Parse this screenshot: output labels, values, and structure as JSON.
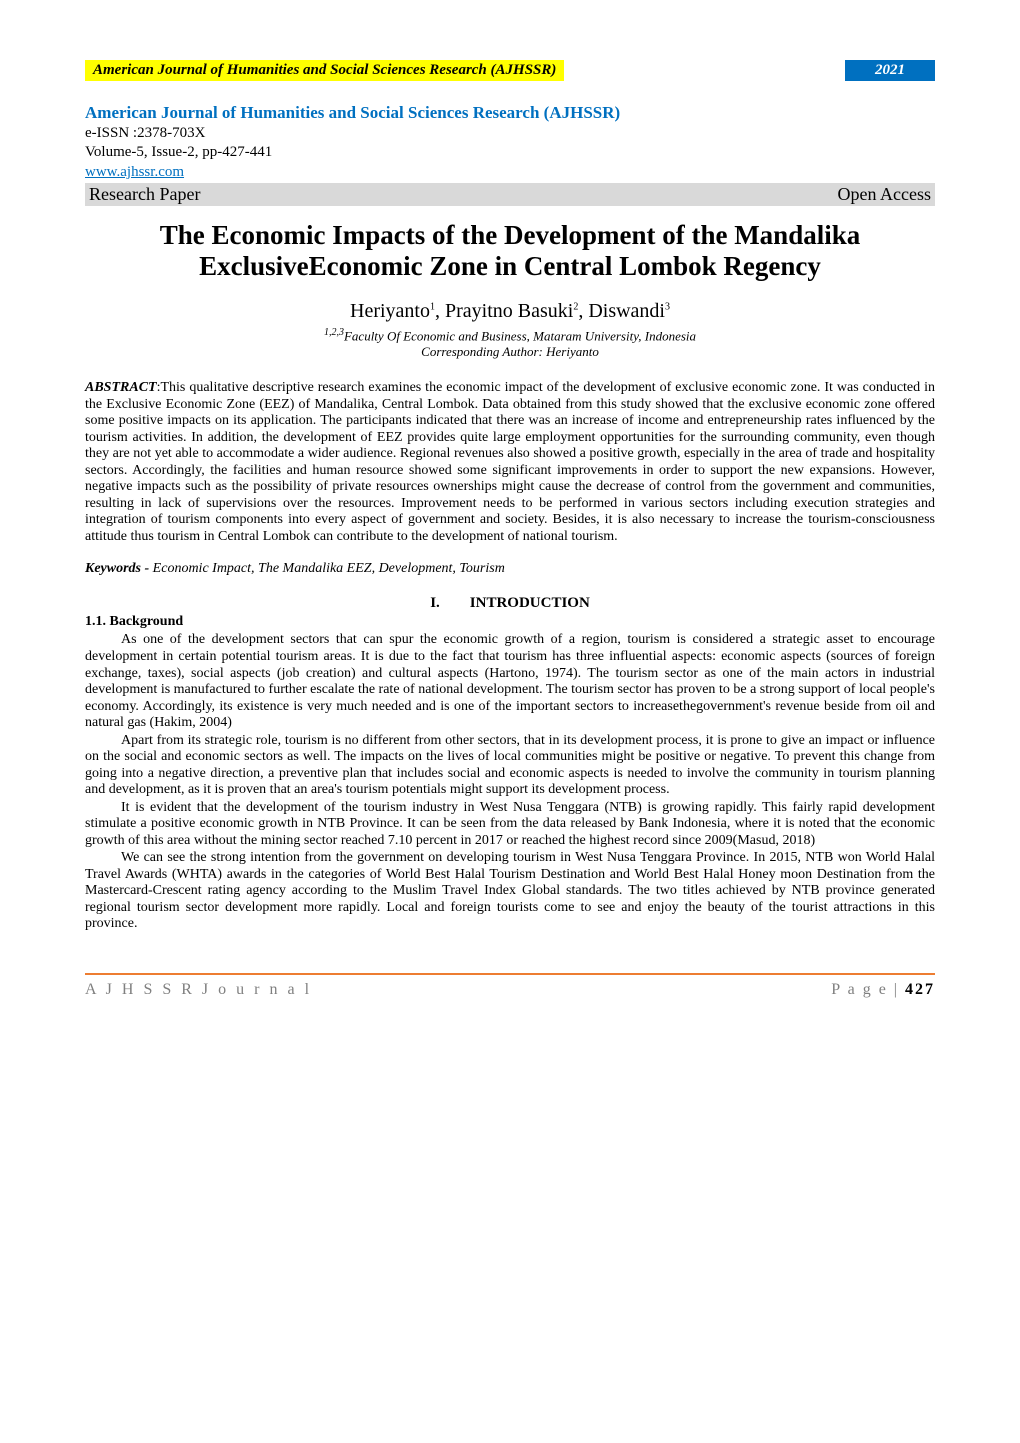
{
  "header": {
    "bar_title": "American Journal of Humanities and Social Sciences Research (AJHSSR)",
    "bar_year": "2021",
    "bar_title_bg": "#ffff00",
    "bar_year_bg": "#0070c0",
    "bar_year_color": "#ffffff"
  },
  "journal": {
    "name": "American Journal of Humanities and Social Sciences Research (AJHSSR)",
    "name_color": "#0070c0",
    "issn": "e-ISSN :2378-703X",
    "volume": "Volume-5, Issue-2, pp-427-441",
    "link": "www.ajhssr.com",
    "link_color": "#0070c0",
    "paper_type": "Research Paper",
    "access_type": "Open Access",
    "type_row_bg": "#d9d9d9"
  },
  "title": "The Economic Impacts of the Development of the Mandalika ExclusiveEconomic Zone in Central Lombok Regency",
  "authors": {
    "a1": "Heriyanto",
    "s1": "1",
    "a2": "Prayitno Basuki",
    "s2": "2",
    "a3": "Diswandi",
    "s3": "3"
  },
  "affiliation": {
    "sup": "1,2,3",
    "text": "Faculty Of Economic and Business, Mataram University, Indonesia"
  },
  "corresponding": "Corresponding Author: Heriyanto",
  "abstract": {
    "label": "ABSTRACT",
    "text": ":This qualitative descriptive research examines the economic impact of the development of exclusive economic zone. It was conducted in the Exclusive Economic Zone (EEZ) of Mandalika, Central Lombok. Data obtained from this study showed that the exclusive economic zone offered some positive impacts on its application. The participants indicated that there was an increase of income and entrepreneurship rates influenced by the tourism activities. In addition, the development of EEZ provides quite large employment opportunities for the surrounding community, even though they are not yet able to accommodate a wider audience. Regional revenues also showed a positive growth, especially in the area of trade and hospitality sectors. Accordingly, the facilities and human resource showed some significant improvements in order to support the new expansions. However, negative impacts such as the possibility of private resources ownerships might cause the decrease of control from the government and communities, resulting in lack of supervisions over the resources. Improvement needs to be performed in various sectors including execution strategies and integration of tourism components into every aspect of government and society. Besides, it is also necessary to increase the tourism-consciousness attitude thus tourism in Central Lombok can contribute to the development of national tourism."
  },
  "keywords": {
    "label": "Keywords - ",
    "text": "Economic Impact, The Mandalika EEZ, Development, Tourism"
  },
  "section1": {
    "number": "I.",
    "title": "INTRODUCTION"
  },
  "subsection1": "1.1.  Background",
  "paragraphs": {
    "p1": "As one of the development sectors that can spur the economic growth of a region, tourism is considered a strategic asset to encourage development in certain potential tourism areas. It is due to the fact that tourism has three influential aspects: economic aspects (sources of foreign exchange, taxes), social aspects (job creation) and cultural aspects (Hartono, 1974). The tourism sector as one of the main actors in industrial development is manufactured to further escalate the rate of national development. The tourism sector has proven to be a strong support of local people's economy. Accordingly, its existence is very much needed and is one of the important sectors to increasethegovernment's revenue beside from oil and natural gas (Hakim, 2004)",
    "p2": "Apart from its strategic role, tourism is no different from other sectors, that in its development process, it is prone to give an impact or influence on the social and economic sectors as well. The impacts on the lives of local communities might be positive or negative. To prevent this change from going into a negative direction, a preventive plan that includes social and economic aspects is needed to involve the community in tourism planning and development, as it is proven that an area's tourism potentials might support its development process.",
    "p3": "It is evident that the development of the tourism industry in West Nusa Tenggara (NTB) is growing rapidly. This fairly rapid development stimulate a positive economic growth in NTB Province. It can be seen from the data released by Bank Indonesia, where it is noted that the economic growth of this area without the mining sector reached 7.10 percent in 2017 or reached the highest record since 2009(Masud, 2018)",
    "p4": "We can see the strong intention from the government on developing tourism in West Nusa Tenggara Province. In 2015, NTB won World Halal Travel Awards (WHTA) awards in the categories of World Best Halal Tourism Destination and World Best Halal Honey moon Destination from the Mastercard-Crescent rating agency according to the Muslim Travel Index Global standards. The two titles achieved by NTB province generated regional tourism sector development more rapidly. Local and foreign tourists come to see and enjoy the beauty of the tourist attractions in this province."
  },
  "footer": {
    "left": "A J H S S R  J o u r n a l",
    "right_label": "P a g e  | ",
    "right_page": "427",
    "border_color": "#ed7d31",
    "text_color": "#7f7f7f"
  }
}
